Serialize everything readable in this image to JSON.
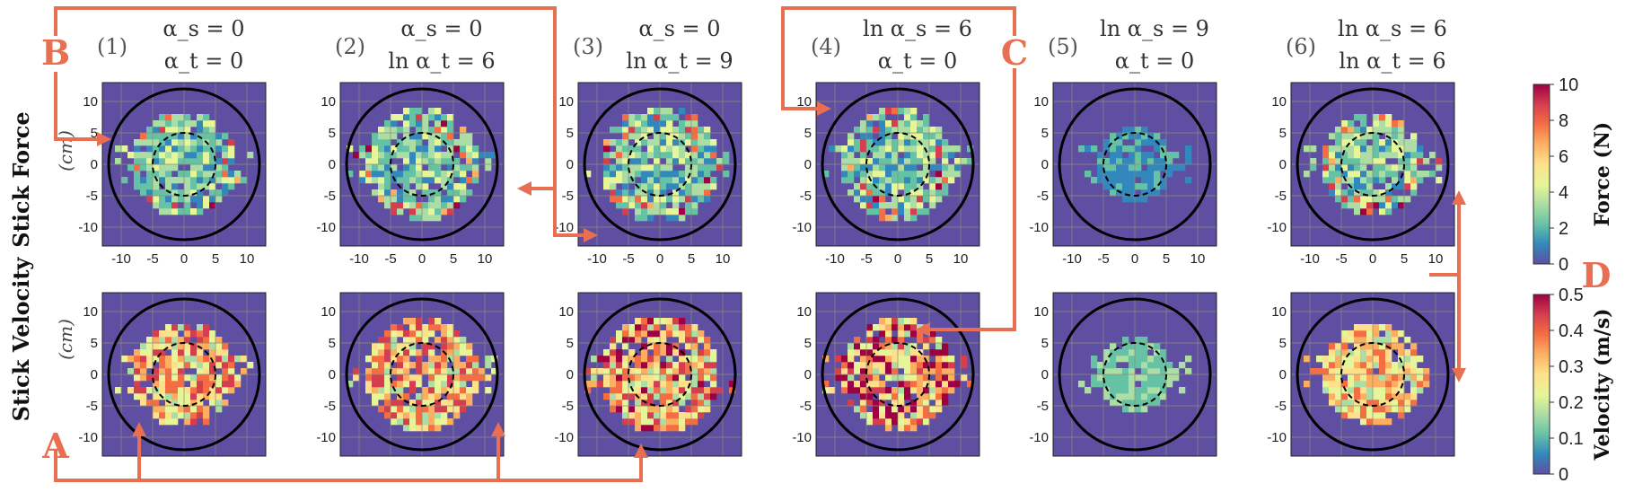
{
  "colors": {
    "background": "#5E4FA2",
    "annotation": "#E86F51",
    "grid": "#8c8c78",
    "colormap": [
      "#5E4FA2",
      "#3288BD",
      "#66C2A5",
      "#ABDDA4",
      "#E6F598",
      "#FEE08B",
      "#FDAE61",
      "#F46D43",
      "#D53E4F",
      "#9E0142"
    ]
  },
  "chart_data": {
    "type": "heatmap",
    "rows": [
      {
        "label": "Stick Force",
        "unit": "(cm)",
        "colorbar_label": "Force (N)",
        "colorbar_range": [
          0,
          10
        ],
        "colorbar_ticks": [
          "0",
          "2",
          "4",
          "6",
          "8",
          "10"
        ]
      },
      {
        "label": "Stick Velocity",
        "unit": "(cm)",
        "colorbar_label": "Velocity (m/s)",
        "colorbar_range": [
          0,
          0.5
        ],
        "colorbar_ticks": [
          "0",
          "0.1",
          "0.2",
          "0.3",
          "0.4",
          "0.5"
        ]
      }
    ],
    "panels": [
      {
        "num": "(1)",
        "line1": "α_s = 0",
        "line2": "α_t = 0"
      },
      {
        "num": "(2)",
        "line1": "α_s = 0",
        "line2": "ln α_t = 6"
      },
      {
        "num": "(3)",
        "line1": "α_s = 0",
        "line2": "ln α_t = 9"
      },
      {
        "num": "(4)",
        "line1": "ln α_s = 6",
        "line2": "α_t = 0"
      },
      {
        "num": "(5)",
        "line1": "ln α_s = 9",
        "line2": "α_t = 0"
      },
      {
        "num": "(6)",
        "line1": "ln α_s = 6",
        "line2": "ln α_t = 6"
      }
    ],
    "x_ticks": [
      "-10",
      "-5",
      "0",
      "5",
      "10"
    ],
    "y_ticks": [
      "10",
      "5",
      "0",
      "-5",
      "-10"
    ],
    "axis_range": [
      -13,
      13
    ],
    "outer_circle_radius": 12,
    "inner_circle_radius": 5,
    "annotations": [
      "A",
      "B",
      "C",
      "D"
    ]
  }
}
